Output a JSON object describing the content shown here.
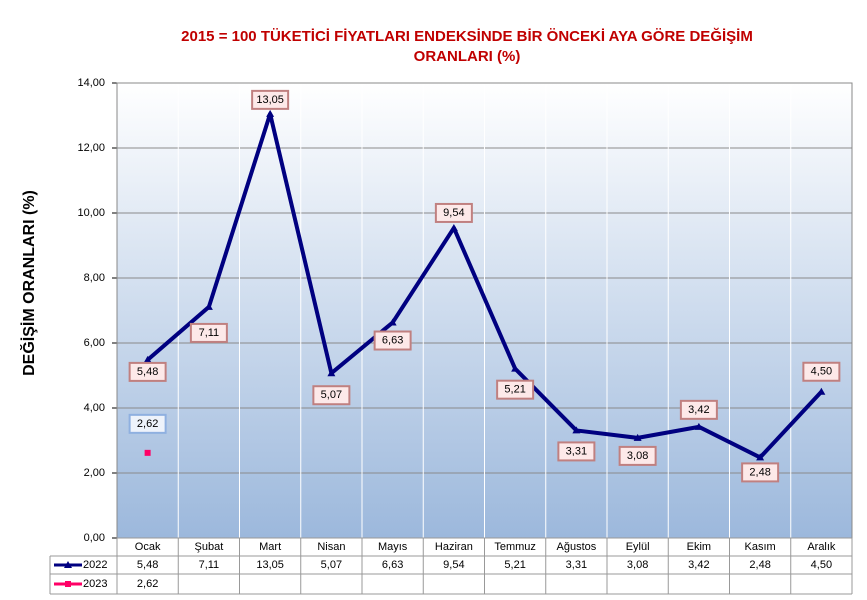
{
  "chart_data": {
    "type": "line",
    "title": [
      "2015 = 100 TÜKETİCİ FİYATLARI ENDEKSİNDE BİR ÖNCEKİ AYA GÖRE DEĞİŞİM",
      "ORANLARI (%)"
    ],
    "y_label": "DEĞİŞİM ORANLARI (%)",
    "categories": [
      "Ocak",
      "Şubat",
      "Mart",
      "Nisan",
      "Mayıs",
      "Haziran",
      "Temmuz",
      "Ağustos",
      "Eylül",
      "Ekim",
      "Kasım",
      "Aralık"
    ],
    "series": [
      {
        "name": "2022",
        "color": "#000080",
        "values": [
          5.48,
          7.11,
          13.05,
          5.07,
          6.63,
          9.54,
          5.21,
          3.31,
          3.08,
          3.42,
          2.48,
          4.5
        ],
        "value_labels": [
          "5,48",
          "7,11",
          "13,05",
          "5,07",
          "6,63",
          "9,54",
          "5,21",
          "3,31",
          "3,08",
          "3,42",
          "2,48",
          "4,50"
        ]
      },
      {
        "name": "2023",
        "color": "#ff0066",
        "values": [
          2.62,
          null,
          null,
          null,
          null,
          null,
          null,
          null,
          null,
          null,
          null,
          null
        ],
        "value_labels": [
          "2,62",
          null,
          null,
          null,
          null,
          null,
          null,
          null,
          null,
          null,
          null,
          null
        ]
      }
    ],
    "ylim": [
      0,
      14
    ],
    "yticks": [
      {
        "value": 0,
        "label": "0,00"
      },
      {
        "value": 2,
        "label": "2,00"
      },
      {
        "value": 4,
        "label": "4,00"
      },
      {
        "value": 6,
        "label": "6,00"
      },
      {
        "value": 8,
        "label": "8,00"
      },
      {
        "value": 10,
        "label": "10,00"
      },
      {
        "value": 12,
        "label": "12,00"
      },
      {
        "value": 14,
        "label": "14,00"
      }
    ],
    "grid": true
  }
}
